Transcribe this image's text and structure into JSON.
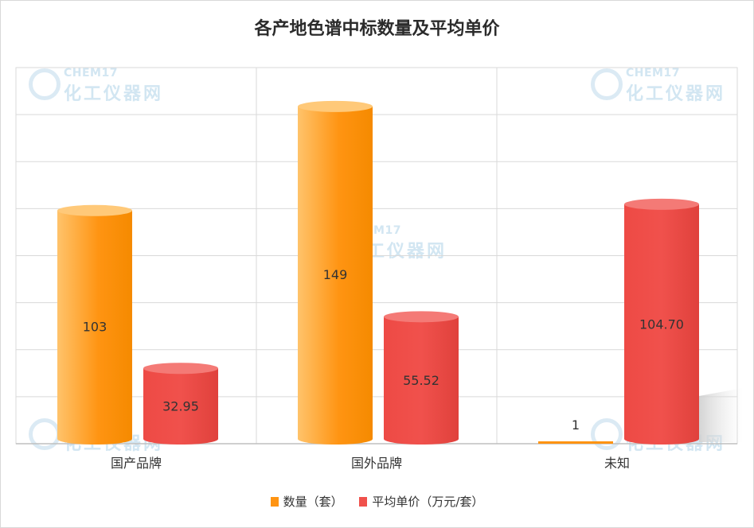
{
  "title": "各产地色谱中标数量及平均单价",
  "watermark": {
    "line1": "CHEM17",
    "line2": "化工仪器网"
  },
  "colors": {
    "quantity": "#FF9412",
    "price": "#F0514C",
    "grid": "#d9d9d9"
  },
  "chart_data": {
    "type": "bar",
    "title": "各产地色谱中标数量及平均单价",
    "categories": [
      "国产品牌",
      "国外品牌",
      "未知"
    ],
    "series": [
      {
        "name": "数量（套）",
        "values": [
          103,
          149,
          1
        ],
        "labels": [
          "103",
          "149",
          "1"
        ]
      },
      {
        "name": "平均单价（万元/套）",
        "values": [
          32.95,
          55.52,
          104.7
        ],
        "labels": [
          "32.95",
          "55.52",
          "104.70"
        ]
      }
    ],
    "grid": true,
    "legend_position": "bottom"
  }
}
